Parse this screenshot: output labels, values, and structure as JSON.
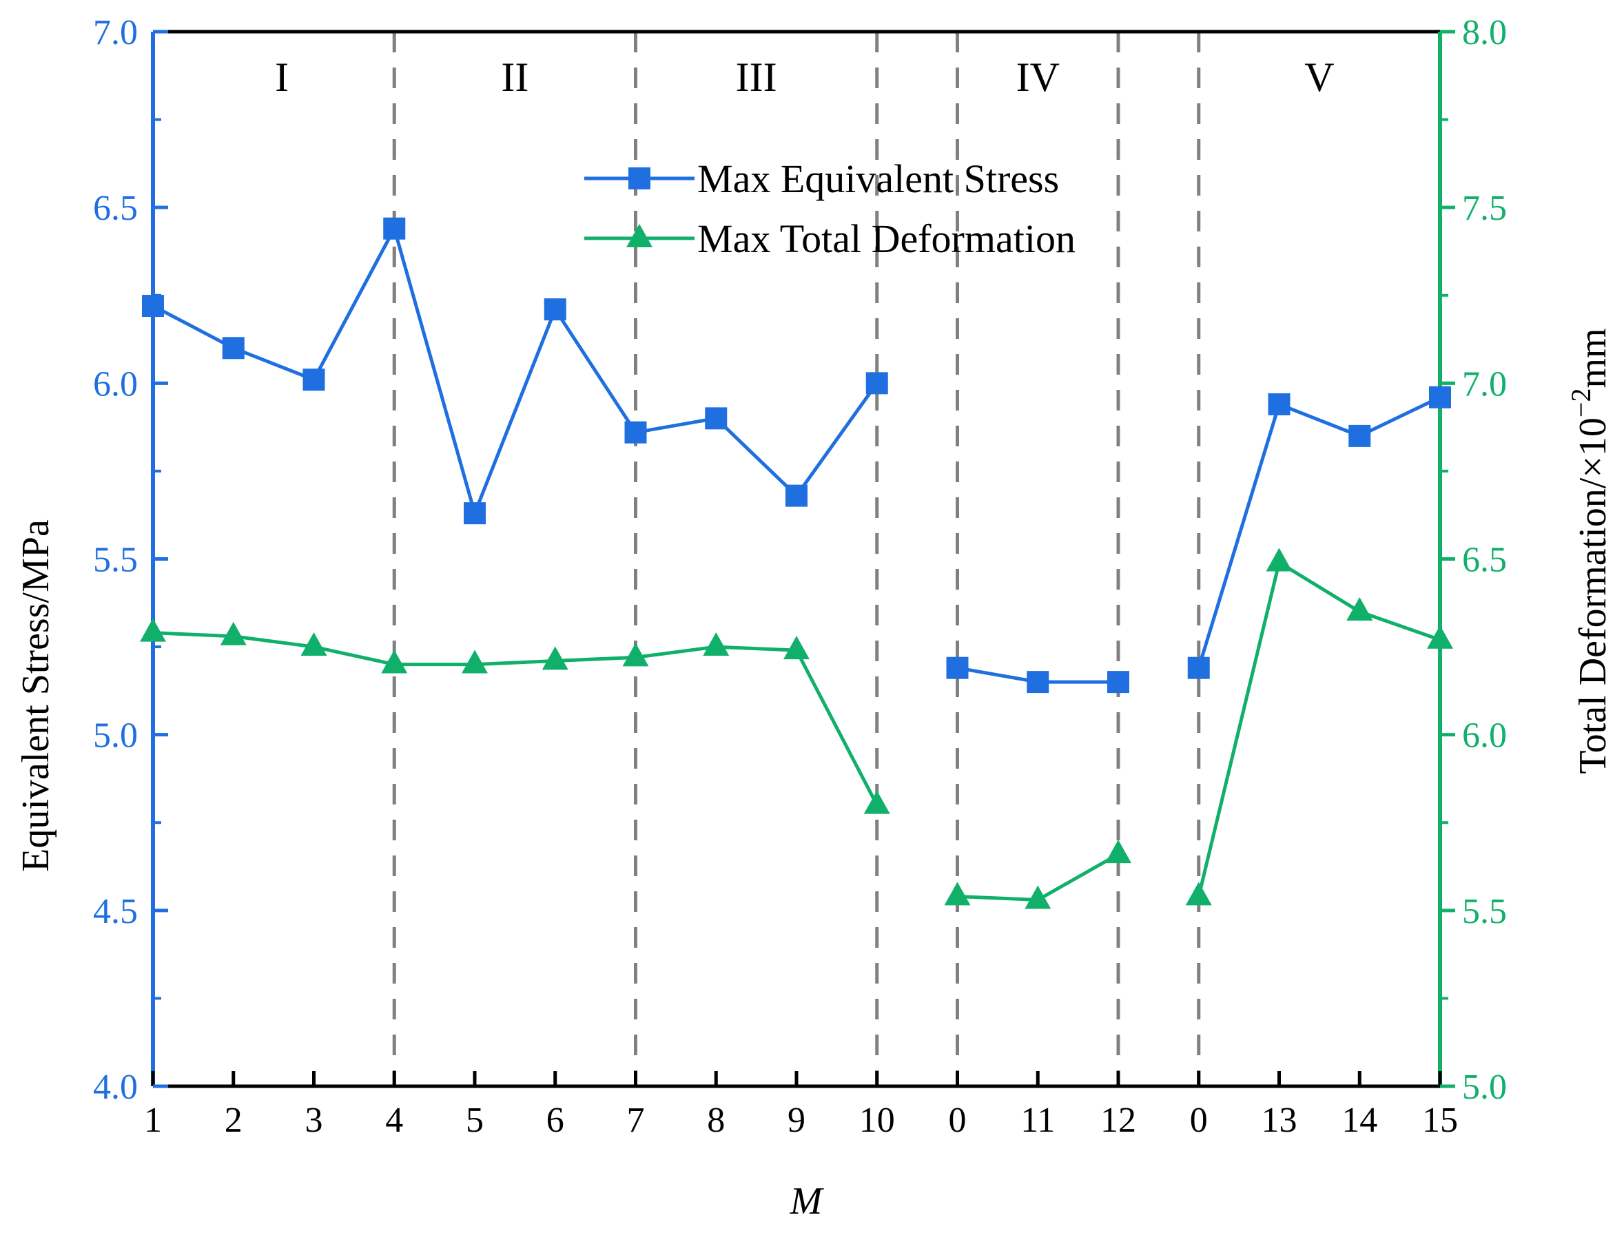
{
  "chart_data": {
    "type": "line",
    "categories": [
      "1",
      "2",
      "3",
      "4",
      "5",
      "6",
      "7",
      "8",
      "9",
      "10",
      "0",
      "11",
      "12",
      "0",
      "13",
      "14",
      "15"
    ],
    "xlabel": "M",
    "ylabel_left": "Equivalent Stress/MPa",
    "ylabel_right_prefix": "Total Deformation/×10",
    "ylabel_right_exp": "−2",
    "ylabel_right_suffix": "mm",
    "ylim_left": [
      4.0,
      7.0
    ],
    "ylim_right": [
      5.0,
      8.0
    ],
    "yticks_left": [
      "4.0",
      "4.5",
      "5.0",
      "5.5",
      "6.0",
      "6.5",
      "7.0"
    ],
    "yticks_right": [
      "5.0",
      "5.5",
      "6.0",
      "6.5",
      "7.0",
      "7.5",
      "8.0"
    ],
    "regions": [
      "I",
      "II",
      "III",
      "IV",
      "V"
    ],
    "series": [
      {
        "name": "Max Equivalent Stress",
        "axis": "left",
        "marker": "square",
        "color": "#1f6fe0",
        "values": [
          6.22,
          6.1,
          6.01,
          6.44,
          5.63,
          6.21,
          5.86,
          5.9,
          5.68,
          6.0,
          5.19,
          5.15,
          5.15,
          5.19,
          5.94,
          5.85,
          5.96
        ]
      },
      {
        "name": "Max Total Deformation",
        "axis": "right",
        "marker": "triangle",
        "color": "#10b06a",
        "values": [
          6.29,
          6.28,
          6.25,
          6.2,
          6.2,
          6.21,
          6.22,
          6.25,
          6.24,
          5.8,
          5.54,
          5.53,
          5.66,
          5.54,
          6.49,
          6.35,
          6.27
        ]
      }
    ],
    "colors": {
      "left_axis": "#1f6fe0",
      "right_axis": "#10b06a",
      "divider": "#808080",
      "frame": "#000000"
    },
    "legend_position": "top-center"
  }
}
